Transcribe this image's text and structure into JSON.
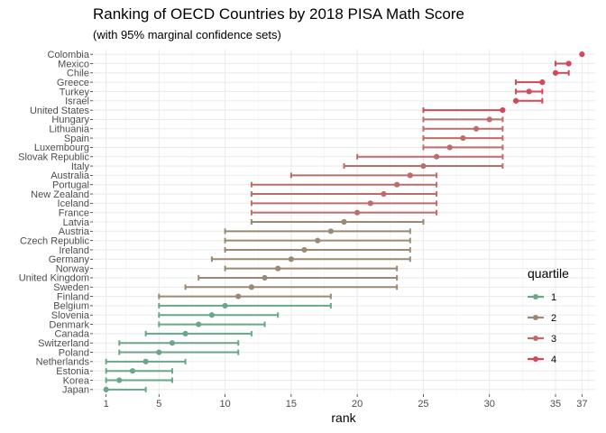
{
  "chart_data": {
    "type": "scatter",
    "title": "Ranking of OECD Countries by 2018 PISA Math Score",
    "subtitle": "(with 95% marginal confidence sets)",
    "xlabel": "rank",
    "ylabel": "",
    "xlim": [
      0,
      38
    ],
    "x_ticks": [
      1,
      5,
      10,
      15,
      20,
      25,
      30,
      35,
      37
    ],
    "grid": true,
    "legend": {
      "title": "quartile",
      "position": "right",
      "entries": [
        {
          "label": "1",
          "color": "#6aa688"
        },
        {
          "label": "2",
          "color": "#9a8a74"
        },
        {
          "label": "3",
          "color": "#bd6d69"
        },
        {
          "label": "4",
          "color": "#d0485a"
        }
      ]
    },
    "rows": [
      {
        "country": "Colombia",
        "rank": 37,
        "lo": 37,
        "hi": 37,
        "quartile": 4
      },
      {
        "country": "Mexico",
        "rank": 36,
        "lo": 35,
        "hi": 36,
        "quartile": 4
      },
      {
        "country": "Chile",
        "rank": 35,
        "lo": 35,
        "hi": 36,
        "quartile": 4
      },
      {
        "country": "Greece",
        "rank": 34,
        "lo": 32,
        "hi": 34,
        "quartile": 4
      },
      {
        "country": "Turkey",
        "rank": 33,
        "lo": 32,
        "hi": 34,
        "quartile": 4
      },
      {
        "country": "Israel",
        "rank": 32,
        "lo": 32,
        "hi": 34,
        "quartile": 4
      },
      {
        "country": "United States",
        "rank": 31,
        "lo": 25,
        "hi": 31,
        "quartile": 4
      },
      {
        "country": "Hungary",
        "rank": 30,
        "lo": 25,
        "hi": 31,
        "quartile": 3
      },
      {
        "country": "Lithuania",
        "rank": 29,
        "lo": 25,
        "hi": 31,
        "quartile": 3
      },
      {
        "country": "Spain",
        "rank": 28,
        "lo": 25,
        "hi": 31,
        "quartile": 3
      },
      {
        "country": "Luxembourg",
        "rank": 27,
        "lo": 25,
        "hi": 31,
        "quartile": 3
      },
      {
        "country": "Slovak Republic",
        "rank": 26,
        "lo": 20,
        "hi": 31,
        "quartile": 3
      },
      {
        "country": "Italy",
        "rank": 25,
        "lo": 19,
        "hi": 31,
        "quartile": 3
      },
      {
        "country": "Australia",
        "rank": 24,
        "lo": 15,
        "hi": 26,
        "quartile": 3
      },
      {
        "country": "Portugal",
        "rank": 23,
        "lo": 12,
        "hi": 26,
        "quartile": 3
      },
      {
        "country": "New Zealand",
        "rank": 22,
        "lo": 12,
        "hi": 26,
        "quartile": 3
      },
      {
        "country": "Iceland",
        "rank": 21,
        "lo": 12,
        "hi": 26,
        "quartile": 3
      },
      {
        "country": "France",
        "rank": 20,
        "lo": 12,
        "hi": 26,
        "quartile": 3
      },
      {
        "country": "Latvia",
        "rank": 19,
        "lo": 12,
        "hi": 25,
        "quartile": 2
      },
      {
        "country": "Austria",
        "rank": 18,
        "lo": 10,
        "hi": 24,
        "quartile": 2
      },
      {
        "country": "Czech Republic",
        "rank": 17,
        "lo": 10,
        "hi": 24,
        "quartile": 2
      },
      {
        "country": "Ireland",
        "rank": 16,
        "lo": 10,
        "hi": 24,
        "quartile": 2
      },
      {
        "country": "Germany",
        "rank": 15,
        "lo": 9,
        "hi": 24,
        "quartile": 2
      },
      {
        "country": "Norway",
        "rank": 14,
        "lo": 10,
        "hi": 23,
        "quartile": 2
      },
      {
        "country": "United Kingdom",
        "rank": 13,
        "lo": 8,
        "hi": 23,
        "quartile": 2
      },
      {
        "country": "Sweden",
        "rank": 12,
        "lo": 7,
        "hi": 23,
        "quartile": 2
      },
      {
        "country": "Finland",
        "rank": 11,
        "lo": 5,
        "hi": 18,
        "quartile": 2
      },
      {
        "country": "Belgium",
        "rank": 10,
        "lo": 5,
        "hi": 18,
        "quartile": 1
      },
      {
        "country": "Slovenia",
        "rank": 9,
        "lo": 5,
        "hi": 14,
        "quartile": 1
      },
      {
        "country": "Denmark",
        "rank": 8,
        "lo": 5,
        "hi": 13,
        "quartile": 1
      },
      {
        "country": "Canada",
        "rank": 7,
        "lo": 4,
        "hi": 12,
        "quartile": 1
      },
      {
        "country": "Switzerland",
        "rank": 6,
        "lo": 2,
        "hi": 11,
        "quartile": 1
      },
      {
        "country": "Poland",
        "rank": 5,
        "lo": 2,
        "hi": 11,
        "quartile": 1
      },
      {
        "country": "Netherlands",
        "rank": 4,
        "lo": 1,
        "hi": 7,
        "quartile": 1
      },
      {
        "country": "Estonia",
        "rank": 3,
        "lo": 1,
        "hi": 6,
        "quartile": 1
      },
      {
        "country": "Korea",
        "rank": 2,
        "lo": 1,
        "hi": 6,
        "quartile": 1
      },
      {
        "country": "Japan",
        "rank": 1,
        "lo": 1,
        "hi": 4,
        "quartile": 1
      }
    ]
  }
}
